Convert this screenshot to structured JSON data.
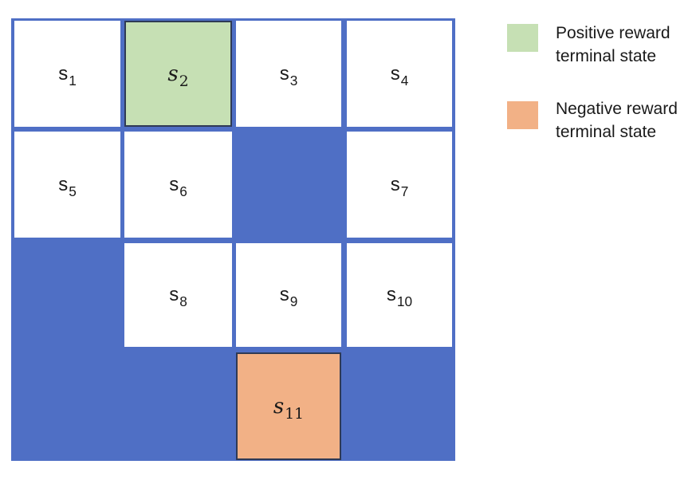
{
  "grid": {
    "colors": {
      "blocked": "#4f6fc5",
      "empty": "#ffffff",
      "positive_terminal": "#c6e0b4",
      "negative_terminal": "#f2b186"
    },
    "rows": [
      [
        {
          "type": "empty",
          "base": "s",
          "sub": "1"
        },
        {
          "type": "positive_terminal",
          "base": "s",
          "sub": "2"
        },
        {
          "type": "empty",
          "base": "s",
          "sub": "3"
        },
        {
          "type": "empty",
          "base": "s",
          "sub": "4"
        }
      ],
      [
        {
          "type": "empty",
          "base": "s",
          "sub": "5"
        },
        {
          "type": "empty",
          "base": "s",
          "sub": "6"
        },
        {
          "type": "blocked"
        },
        {
          "type": "empty",
          "base": "s",
          "sub": "7"
        }
      ],
      [
        {
          "type": "blocked"
        },
        {
          "type": "empty",
          "base": "s",
          "sub": "8"
        },
        {
          "type": "empty",
          "base": "s",
          "sub": "9"
        },
        {
          "type": "empty",
          "base": "s",
          "sub": "10"
        }
      ],
      [
        {
          "type": "blocked"
        },
        {
          "type": "blocked"
        },
        {
          "type": "negative_terminal",
          "base": "s",
          "sub": "11"
        },
        {
          "type": "blocked"
        }
      ]
    ]
  },
  "legend": {
    "positive": {
      "line1": "Positive reward",
      "line2": "terminal state",
      "color": "#c6e0b4"
    },
    "negative": {
      "line1": "Negative reward",
      "line2": "terminal state",
      "color": "#f2b186"
    }
  }
}
